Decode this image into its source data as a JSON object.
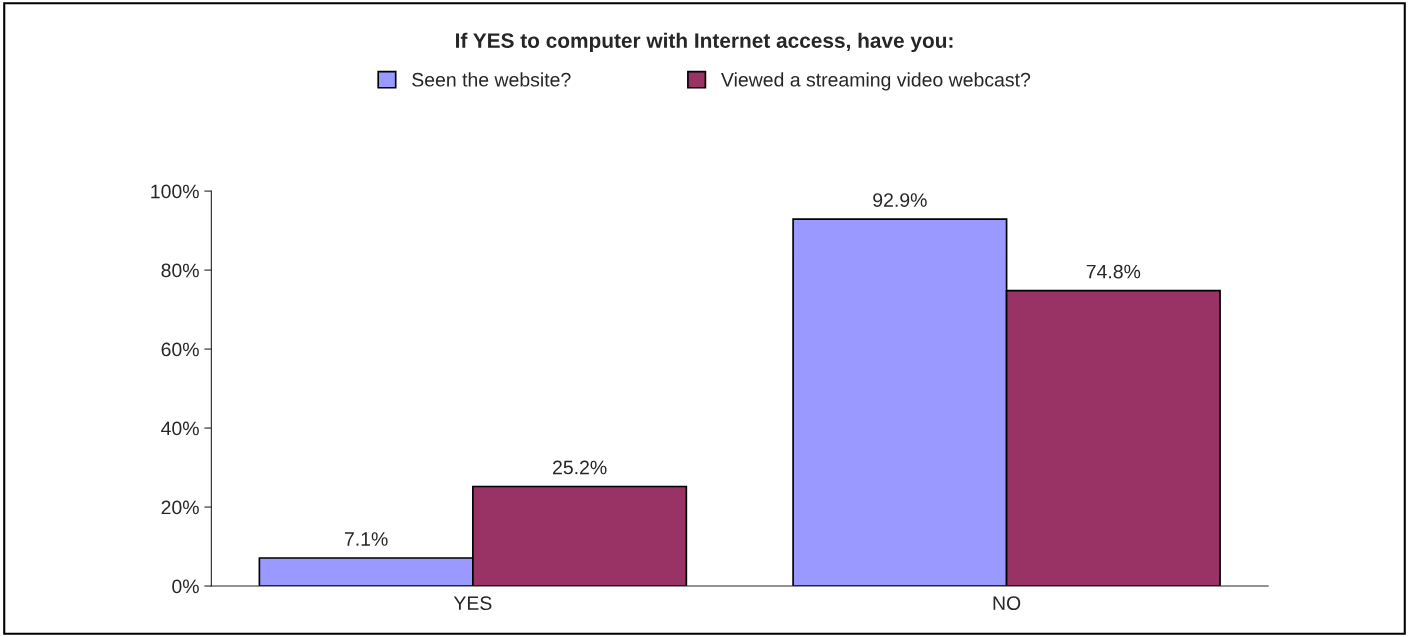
{
  "chart_data": {
    "type": "bar",
    "title": "If YES to computer with Internet access, have you:",
    "categories": [
      "YES",
      "NO"
    ],
    "series": [
      {
        "name": "Seen the website?",
        "color": "#9999ff",
        "values": [
          7.1,
          92.9
        ]
      },
      {
        "name": "Viewed a streaming video webcast?",
        "color": "#993366",
        "values": [
          25.2,
          74.8
        ]
      }
    ],
    "ylim": [
      0,
      100
    ],
    "yticks": [
      {
        "value": 0,
        "label": "0%"
      },
      {
        "value": 20,
        "label": "20%"
      },
      {
        "value": 40,
        "label": "40%"
      },
      {
        "value": 60,
        "label": "60%"
      },
      {
        "value": 80,
        "label": "80%"
      },
      {
        "value": 100,
        "label": "100%"
      }
    ],
    "value_labels": [
      [
        "7.1%",
        "92.9%"
      ],
      [
        "25.2%",
        "74.8%"
      ]
    ],
    "legend": "top",
    "grid": false
  }
}
